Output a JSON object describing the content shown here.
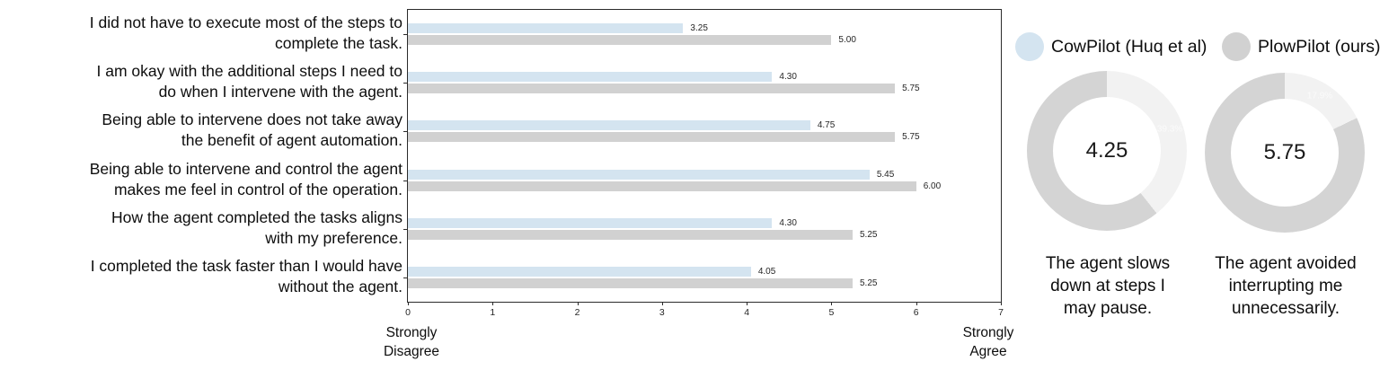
{
  "colors": {
    "cowpilot_blue": "#d4e4f0",
    "plowpilot_gray": "#d1d1d1",
    "donut_fill_gray": "#d4d4d4",
    "donut_remainder_gray": "#f2f2f2",
    "axis_color": "#2b2b2b"
  },
  "legend": {
    "entries": [
      {
        "label": "CowPilot (Huq et al)",
        "color": "#d4e4f0",
        "icon": "circle-swatch-icon"
      },
      {
        "label": "PlowPilot (ours)",
        "color": "#d1d1d1",
        "icon": "circle-swatch-icon"
      }
    ]
  },
  "chart_data": [
    {
      "type": "bar",
      "orientation": "horizontal",
      "title": "",
      "xlabel": "",
      "ylabel": "",
      "xlim": [
        0,
        7
      ],
      "x_ticks": [
        0,
        1,
        2,
        3,
        4,
        5,
        6,
        7
      ],
      "grid": false,
      "legend_position": "outside-right-top",
      "x_axis_end_labels": {
        "left_lines": [
          "Strongly",
          "Disagree"
        ],
        "right_lines": [
          "Strongly",
          "Agree"
        ]
      },
      "categories_lines": [
        [
          "I did not have to execute most of the steps to",
          "complete the task."
        ],
        [
          "I am okay with the additional steps I need to",
          "do when I intervene with the agent."
        ],
        [
          "Being able to intervene does not take away",
          "the benefit of agent automation."
        ],
        [
          "Being able to intervene and control the agent",
          "makes me feel in control of the operation."
        ],
        [
          "How the agent completed the tasks aligns",
          "with my preference."
        ],
        [
          "I completed the task faster than I would have",
          "without the agent."
        ]
      ],
      "series": [
        {
          "name": "CowPilot (Huq et al)",
          "color": "#d4e4f0",
          "values": [
            3.25,
            4.3,
            4.75,
            5.45,
            4.3,
            4.05
          ]
        },
        {
          "name": "PlowPilot (ours)",
          "color": "#d1d1d1",
          "values": [
            5.0,
            5.75,
            5.75,
            6.0,
            5.25,
            5.25
          ]
        }
      ],
      "value_label_decimals": 2
    },
    {
      "type": "pie",
      "subtype": "donut",
      "max": 7,
      "fill_color": "#d4d4d4",
      "remainder_color": "#f2f2f2",
      "items": [
        {
          "value": 4.25,
          "center_label": "4.25",
          "remainder_pct_label": "39.3%",
          "caption_lines": [
            "The agent slows",
            "down at steps I",
            "may pause."
          ]
        },
        {
          "value": 5.75,
          "center_label": "5.75",
          "remainder_pct_label": "17.9%",
          "caption_lines": [
            "The agent avoided",
            "interrupting me",
            "unnecessarily."
          ]
        }
      ]
    }
  ]
}
